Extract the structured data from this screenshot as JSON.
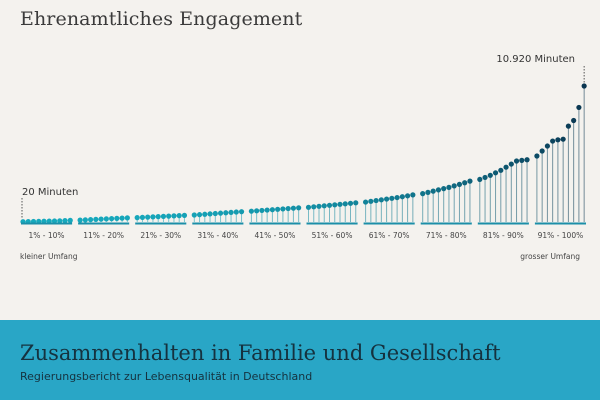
{
  "title": "Ehrenamtliches Engagement",
  "footer": {
    "title": "Zusammenhalten in Familie und Gesellschaft",
    "subtitle": "Regierungsbericht zur Lebensqualität in Deutschland"
  },
  "colors": {
    "low": "#16a9bd",
    "high": "#0a3550",
    "axis": "#1b8fa8",
    "text": "#444444",
    "background": "#f4f2ee",
    "footer": "#29a6c6"
  },
  "chart_data": {
    "type": "scatter",
    "title": "Ehrenamtliches Engagement",
    "unit": "Minuten",
    "categories": [
      "1% - 10%",
      "11% - 20%",
      "21% - 30%",
      "31% - 40%",
      "41% - 50%",
      "51% - 60%",
      "61% - 70%",
      "71% - 80%",
      "81% - 90%",
      "91% - 100%"
    ],
    "x_range_labels": {
      "left": "kleiner Umfang",
      "right": "grosser Umfang"
    },
    "annotations": [
      {
        "text": "20 Minuten",
        "value": 20,
        "percentile": 1
      },
      {
        "text": "10.920 Minuten",
        "value": 10920,
        "percentile": 100
      }
    ],
    "ylim": [
      0,
      11000
    ],
    "grid": false,
    "series": [
      {
        "values": [
          20,
          30,
          40,
          50,
          60,
          70,
          80,
          90,
          110,
          130,
          150,
          170,
          190,
          210,
          230,
          250,
          270,
          290,
          310,
          330,
          350,
          370,
          390,
          410,
          430,
          450,
          470,
          490,
          510,
          530,
          560,
          590,
          620,
          650,
          680,
          710,
          740,
          770,
          800,
          830,
          870,
          900,
          930,
          960,
          990,
          1020,
          1050,
          1080,
          1110,
          1140,
          1180,
          1220,
          1260,
          1300,
          1340,
          1380,
          1420,
          1460,
          1500,
          1540,
          1600,
          1660,
          1720,
          1780,
          1840,
          1900,
          1960,
          2030,
          2100,
          2180,
          2280,
          2380,
          2480,
          2580,
          2680,
          2780,
          2900,
          3020,
          3150,
          3280,
          3420,
          3580,
          3750,
          3950,
          4150,
          4400,
          4650,
          4900,
          4950,
          5000,
          5300,
          5700,
          6100,
          6500,
          6600,
          6650,
          7700,
          8150,
          9200,
          10920
        ]
      }
    ]
  }
}
